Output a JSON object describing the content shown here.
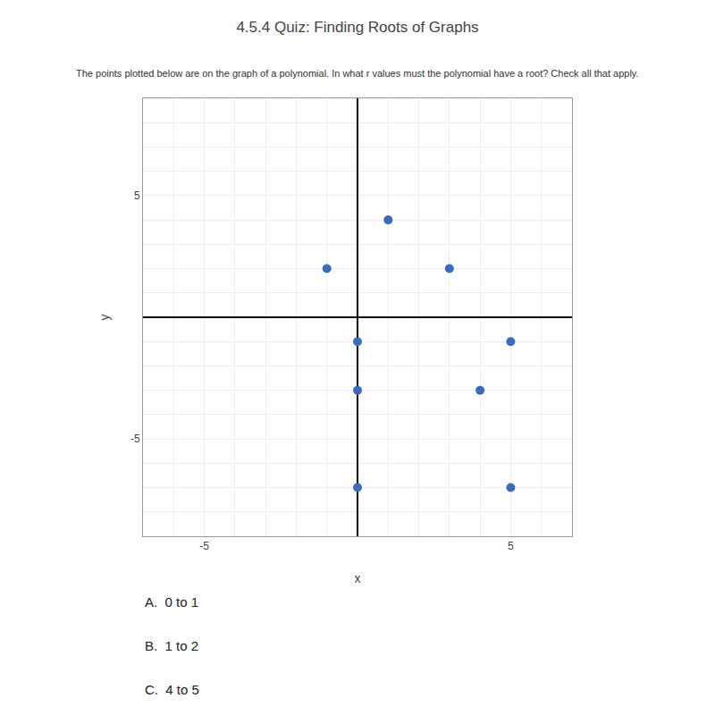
{
  "chart_data": {
    "type": "scatter",
    "title": "4.5.4 Quiz: Finding Roots of Graphs",
    "subtitle": "The points plotted below are on the graph of a polynomial. In what r values must the polynomial have a root? Check all that apply.",
    "x": [
      1,
      -1,
      3,
      0,
      5,
      0,
      4,
      0,
      5
    ],
    "values": [
      4,
      2,
      2,
      -1,
      -1,
      -3,
      -3,
      -7,
      -7
    ],
    "color": "#3a6bbf",
    "xlabel": "x",
    "ylabel": "y",
    "xlim": [
      -7,
      7
    ],
    "ylim": [
      -9,
      9
    ],
    "xticks": [
      {
        "value": -7,
        "label": ""
      },
      {
        "value": -6,
        "label": ""
      },
      -5,
      {
        "value": -4,
        "label": ""
      },
      {
        "value": -3,
        "label": ""
      },
      {
        "value": -2,
        "label": ""
      },
      {
        "value": -1,
        "label": ""
      },
      {
        "value": 0,
        "label": ""
      },
      {
        "value": 1,
        "label": ""
      },
      {
        "value": 2,
        "label": ""
      },
      {
        "value": 3,
        "label": ""
      },
      {
        "value": 4,
        "label": ""
      },
      5,
      {
        "value": 6,
        "label": ""
      },
      {
        "value": 7,
        "label": ""
      }
    ],
    "yticks": [
      {
        "value": -9,
        "label": ""
      },
      {
        "value": -8,
        "label": ""
      },
      {
        "value": -7,
        "label": ""
      },
      {
        "value": -6,
        "label": ""
      },
      -5,
      {
        "value": -4,
        "label": ""
      },
      {
        "value": -3,
        "label": ""
      },
      {
        "value": -2,
        "label": ""
      },
      {
        "value": -1,
        "label": ""
      },
      {
        "value": 0,
        "label": ""
      },
      {
        "value": 1,
        "label": ""
      },
      {
        "value": 2,
        "label": ""
      },
      {
        "value": 3,
        "label": ""
      },
      {
        "value": 4,
        "label": ""
      },
      5,
      {
        "value": 6,
        "label": ""
      },
      {
        "value": 7,
        "label": ""
      },
      {
        "value": 8,
        "label": ""
      },
      {
        "value": 9,
        "label": ""
      }
    ],
    "grid": true,
    "annotations": [
      "A.  0 to 1",
      "B.  1 to 2",
      "C.  4 to 5"
    ]
  }
}
